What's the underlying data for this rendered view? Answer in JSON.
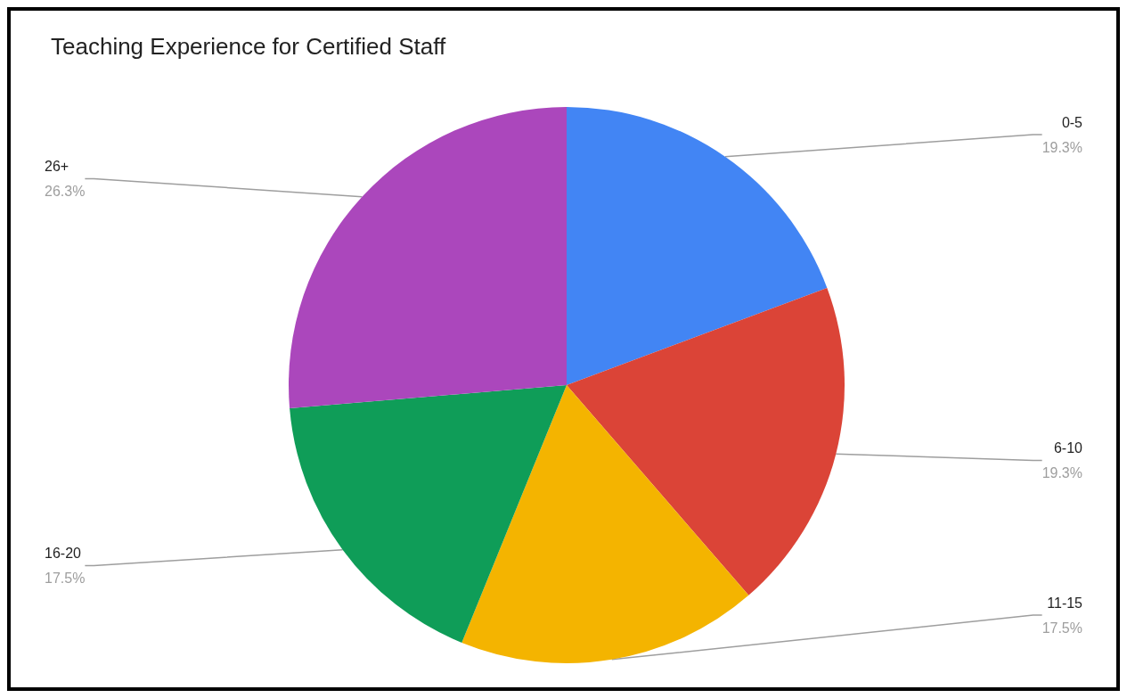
{
  "chart_data": {
    "type": "pie",
    "title": "Teaching Experience for Certified Staff",
    "categories": [
      "0-5",
      "6-10",
      "11-15",
      "16-20",
      "26+"
    ],
    "values": [
      19.3,
      19.3,
      17.5,
      17.5,
      26.3
    ],
    "value_labels": [
      "19.3%",
      "19.3%",
      "17.5%",
      "17.5%",
      "26.3%"
    ],
    "colors": [
      "#4285f4",
      "#db4437",
      "#f4b400",
      "#0f9d58",
      "#ab47bc"
    ],
    "legend": false
  }
}
